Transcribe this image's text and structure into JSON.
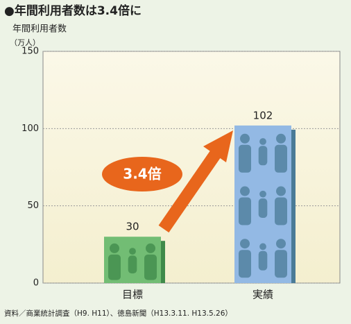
{
  "chart_data": {
    "type": "bar",
    "title": "●年間利用者数は3.4倍に",
    "y_label": "年間利用者数",
    "y_unit": "（万人）",
    "categories": [
      "目標",
      "実績"
    ],
    "values": [
      30,
      102
    ],
    "colors": [
      "#72bd74",
      "#93b9e4"
    ],
    "side_colors": [
      "#3f8a4a",
      "#4a7b97"
    ],
    "ylim": [
      0,
      150
    ],
    "yticks": [
      0,
      50,
      100,
      150
    ],
    "grid": true,
    "annotation": "3.4倍",
    "annotation_color": "#e8661c",
    "source": "資料／商業統計調査（H9. H11）、徳島新聞（H13.3.11. H13.5.26）"
  }
}
